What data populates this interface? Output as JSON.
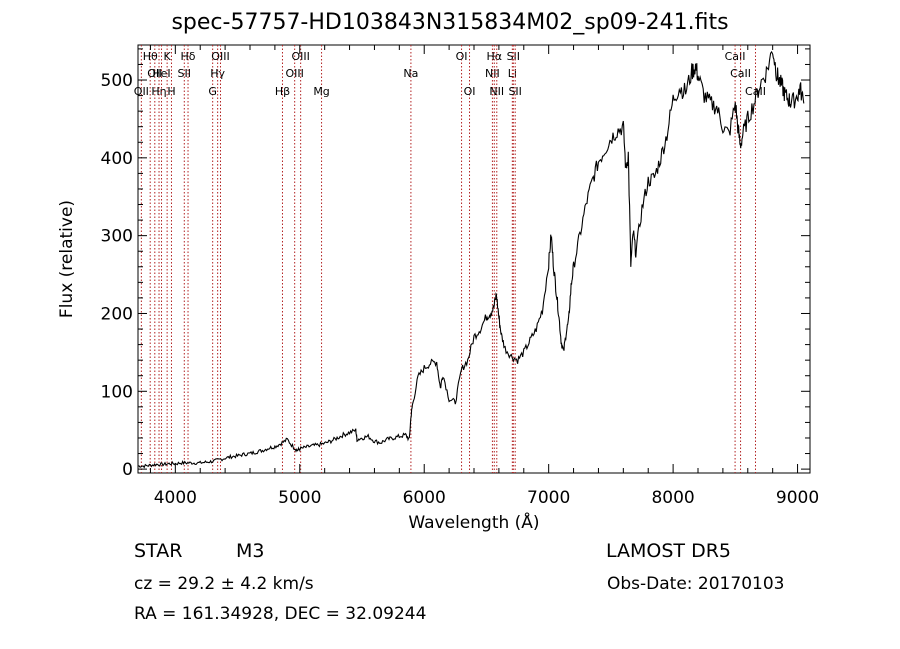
{
  "chart_data": {
    "type": "line",
    "title": "spec-57757-HD103843N315834M02_sp09-241.fits",
    "xlabel": "Wavelength (Å)",
    "ylabel": "Flux (relative)",
    "xlim": [
      3700,
      9100
    ],
    "ylim": [
      -5,
      545
    ],
    "x_ticks": [
      4000,
      5000,
      6000,
      7000,
      8000,
      9000
    ],
    "x_tick_labels": [
      "4000",
      "5000",
      "6000",
      "7000",
      "8000",
      "9000"
    ],
    "y_ticks": [
      0,
      100,
      200,
      300,
      400,
      500
    ],
    "y_tick_labels": [
      "0",
      "100",
      "200",
      "300",
      "400",
      "500"
    ],
    "grid": false,
    "line_color": "#000000",
    "marker_color": "#b22222",
    "series": [
      {
        "x": [
          3700,
          3750,
          3800,
          3850,
          3900,
          3950,
          4000,
          4050,
          4100,
          4150,
          4200,
          4250,
          4300,
          4350,
          4400,
          4450,
          4500,
          4550,
          4600,
          4650,
          4700,
          4750,
          4800,
          4850,
          4900,
          4950,
          4980,
          5000,
          5050,
          5100,
          5150,
          5200,
          5250,
          5300,
          5350,
          5400,
          5450,
          5460,
          5500,
          5550,
          5600,
          5650,
          5700,
          5750,
          5800,
          5850,
          5880,
          5895,
          5905,
          5950,
          6000,
          6050,
          6100,
          6130,
          6150,
          6200,
          6250,
          6300,
          6350,
          6400,
          6450,
          6500,
          6530,
          6560,
          6580,
          6600,
          6620,
          6650,
          6700,
          6750,
          6800,
          6850,
          6900,
          6950,
          7000,
          7020,
          7040,
          7060,
          7080,
          7100,
          7120,
          7140,
          7160,
          7180,
          7200,
          7250,
          7300,
          7350,
          7400,
          7450,
          7500,
          7550,
          7600,
          7620,
          7640,
          7660,
          7680,
          7700,
          7750,
          7800,
          7850,
          7900,
          7950,
          8000,
          8050,
          8100,
          8150,
          8180,
          8200,
          8250,
          8300,
          8350,
          8400,
          8450,
          8500,
          8520,
          8540,
          8560,
          8600,
          8650,
          8700,
          8750,
          8800,
          8830,
          8850,
          8880,
          8900,
          8930,
          8950,
          9000,
          9020,
          9050
        ],
        "y": [
          4,
          4,
          5,
          6,
          6,
          7,
          7,
          8,
          8,
          8,
          8,
          9,
          10,
          12,
          14,
          16,
          17,
          19,
          20,
          22,
          24,
          27,
          29,
          33,
          38,
          28,
          24,
          26,
          28,
          30,
          31,
          33,
          36,
          40,
          44,
          47,
          50,
          38,
          40,
          42,
          36,
          34,
          38,
          40,
          42,
          44,
          38,
          70,
          82,
          118,
          130,
          136,
          138,
          104,
          122,
          90,
          86,
          128,
          140,
          170,
          180,
          196,
          200,
          208,
          225,
          195,
          172,
          155,
          145,
          140,
          150,
          165,
          180,
          205,
          265,
          300,
          260,
          230,
          200,
          165,
          150,
          175,
          190,
          235,
          260,
          300,
          340,
          370,
          395,
          410,
          425,
          435,
          440,
          385,
          405,
          262,
          305,
          278,
          335,
          370,
          375,
          400,
          430,
          475,
          490,
          485,
          510,
          518,
          505,
          480,
          470,
          465,
          440,
          430,
          470,
          440,
          415,
          430,
          450,
          470,
          495,
          510,
          540,
          510,
          500,
          490,
          480,
          475,
          470,
          480,
          490,
          470
        ]
      }
    ],
    "markers": [
      {
        "x": 3727,
        "row": 2,
        "label": "OII"
      },
      {
        "x": 3798,
        "row": 0,
        "label": "Hθ"
      },
      {
        "x": 3835,
        "row": 1,
        "label": "OII"
      },
      {
        "x": 3869,
        "row": 2,
        "label": "Hη"
      },
      {
        "x": 3889,
        "row": 1,
        "label": "HeI"
      },
      {
        "x": 3934,
        "row": 0,
        "label": "K"
      },
      {
        "x": 3969,
        "row": 2,
        "label": "H"
      },
      {
        "x": 4072,
        "row": 1,
        "label": "SII"
      },
      {
        "x": 4102,
        "row": 0,
        "label": "Hδ"
      },
      {
        "x": 4300,
        "row": 2,
        "label": "G"
      },
      {
        "x": 4340,
        "row": 1,
        "label": "Hγ"
      },
      {
        "x": 4363,
        "row": 0,
        "label": "OIII"
      },
      {
        "x": 4861,
        "row": 2,
        "label": "Hβ"
      },
      {
        "x": 4959,
        "row": 1,
        "label": "OIII"
      },
      {
        "x": 5007,
        "row": 0,
        "label": "OIII"
      },
      {
        "x": 5175,
        "row": 2,
        "label": "Mg"
      },
      {
        "x": 5893,
        "row": 1,
        "label": "Na"
      },
      {
        "x": 6300,
        "row": 0,
        "label": "OI"
      },
      {
        "x": 6364,
        "row": 2,
        "label": "OI"
      },
      {
        "x": 6548,
        "row": 1,
        "label": "NII"
      },
      {
        "x": 6563,
        "row": 0,
        "label": "Hα"
      },
      {
        "x": 6583,
        "row": 2,
        "label": "NII"
      },
      {
        "x": 6708,
        "row": 1,
        "label": "Li"
      },
      {
        "x": 6716,
        "row": 0,
        "label": "SII"
      },
      {
        "x": 6731,
        "row": 2,
        "label": "SII"
      },
      {
        "x": 8498,
        "row": 0,
        "label": "CaII"
      },
      {
        "x": 8542,
        "row": 1,
        "label": "CaII"
      },
      {
        "x": 8662,
        "row": 2,
        "label": "CaII"
      }
    ]
  },
  "info": {
    "class_label": "STAR",
    "subclass": "M3",
    "survey": "LAMOST DR5",
    "redshift": "cz = 29.2 ± 4.2 km/s",
    "obs_date": "Obs-Date: 20170103",
    "coords": "RA = 161.34928, DEC =  32.09244"
  }
}
